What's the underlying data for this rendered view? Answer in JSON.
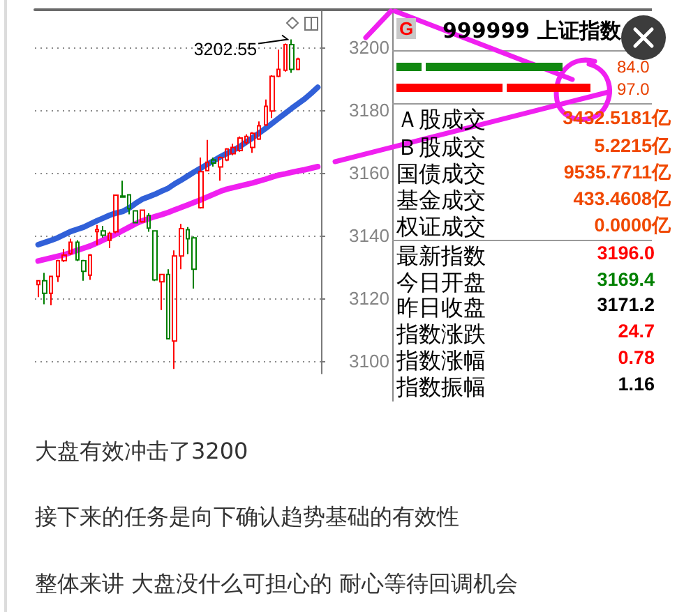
{
  "chart_data": {
    "type": "candlestick",
    "categories": [
      null,
      null,
      null,
      null,
      null,
      null,
      null,
      null,
      null,
      null,
      null,
      null,
      null,
      null,
      null,
      null,
      null,
      null,
      null,
      null,
      null,
      null,
      null,
      null,
      null,
      null,
      null,
      null,
      null,
      null,
      null,
      null,
      null,
      null,
      null,
      null,
      null,
      null,
      null,
      null,
      null,
      null,
      null,
      null
    ],
    "ohlc": [
      [
        3124.4,
        3125.8,
        3120.4,
        3125.6
      ],
      [
        3125.6,
        3128.1,
        3118.1,
        3121.6
      ],
      [
        3121.6,
        3127.0,
        3117.8,
        3127.0
      ],
      [
        3127.0,
        3132.3,
        3125.2,
        3132.0
      ],
      [
        3132.0,
        3135.7,
        3131.6,
        3133.8
      ],
      [
        3134.2,
        3139.0,
        3133.9,
        3137.9
      ],
      [
        3137.9,
        3138.5,
        3131.9,
        3132.3
      ],
      [
        3132.0,
        3132.3,
        3125.6,
        3128.6
      ],
      [
        3127.4,
        3134.1,
        3125.9,
        3133.8
      ],
      [
        3141.3,
        3143.4,
        3137.0,
        3141.9
      ],
      [
        3141.5,
        3143.1,
        3139.4,
        3140.1
      ],
      [
        3138.5,
        3141.2,
        3136.0,
        3140.7
      ],
      [
        3141.2,
        3152.9,
        3140.7,
        3152.9
      ],
      [
        3152.6,
        3157.5,
        3152.1,
        3152.3
      ],
      [
        3153.0,
        3153.0,
        3146.8,
        3148.6
      ],
      [
        3147.9,
        3148.1,
        3143.9,
        3144.1
      ],
      [
        3144.4,
        3148.3,
        3144.1,
        3148.1
      ],
      [
        3146.4,
        3147.1,
        3141.2,
        3142.4
      ],
      [
        3141.5,
        3141.6,
        3125.5,
        3125.9
      ],
      [
        3125.3,
        3127.7,
        3116.3,
        3127.6
      ],
      [
        3127.6,
        3129.3,
        3107.1,
        3107.1
      ],
      [
        3106.4,
        3135.3,
        3097.5,
        3133.5
      ],
      [
        3133.5,
        3143.7,
        3129.3,
        3142.2
      ],
      [
        3141.9,
        3142.7,
        3134.1,
        3139.0
      ],
      [
        3139.3,
        3139.7,
        3123.1,
        3129.3
      ],
      [
        3148.9,
        3164.9,
        3148.6,
        3160.4
      ],
      [
        3160.7,
        3170.5,
        3160.7,
        3163.4
      ],
      [
        3164.1,
        3164.9,
        3162.0,
        3163.1
      ],
      [
        3161.9,
        3165.2,
        3157.5,
        3164.9
      ],
      [
        3164.1,
        3167.9,
        3163.7,
        3167.6
      ],
      [
        3166.1,
        3169.3,
        3165.6,
        3168.1
      ],
      [
        3167.1,
        3171.6,
        3166.7,
        3171.1
      ],
      [
        3169.6,
        3172.3,
        3169.0,
        3171.6
      ],
      [
        3168.1,
        3173.0,
        3166.4,
        3172.6
      ],
      [
        3170.8,
        3176.4,
        3170.5,
        3175.0
      ],
      [
        3175.3,
        3183.4,
        3175.0,
        3181.2
      ],
      [
        3179.7,
        3191.1,
        3177.5,
        3190.8
      ],
      [
        3190.8,
        3199.3,
        3190.5,
        3193.0
      ],
      [
        3192.7,
        3201.2,
        3192.3,
        3200.9
      ],
      [
        3200.9,
        3202.55,
        3191.9,
        3193.0
      ],
      [
        3193.0,
        3196.7,
        3192.7,
        3196.3
      ],
      null,
      null,
      null
    ],
    "colors": [
      "#ff0000",
      "#008000",
      "#ff0000",
      "#ff0000",
      "#ff0000",
      "#ff0000",
      "#008000",
      "#008000",
      "#ff0000",
      "#ff0000",
      "#008000",
      "#ff0000",
      "#ff0000",
      "#008000",
      "#008000",
      "#008000",
      "#ff0000",
      "#008000",
      "#008000",
      "#ff0000",
      "#008000",
      "#ff0000",
      "#ff0000",
      "#008000",
      "#008000",
      "#ff0000",
      "#ff0000",
      "#008000",
      "#ff0000",
      "#ff0000",
      "#ff0000",
      "#ff0000",
      "#ff0000",
      "#ff0000",
      "#ff0000",
      "#ff0000",
      "#ff0000",
      "#ff0000",
      "#ff0000",
      "#008000",
      "#ff0000",
      null,
      null,
      null
    ],
    "series": [
      {
        "type": "line",
        "color": "#3160d8",
        "values": [
          3137.1,
          3137.8,
          3138.5,
          3139.3,
          3140.3,
          3141.3,
          3142.0,
          3142.7,
          3143.7,
          3144.7,
          3145.6,
          3146.5,
          3147.2,
          3147.7,
          3148.8,
          3150.3,
          3151.6,
          3152.4,
          3153.2,
          3154.2,
          3155.1,
          3156.5,
          3157.7,
          3159.0,
          3160.3,
          3161.5,
          3162.7,
          3163.9,
          3165.1,
          3166.2,
          3167.2,
          3168.4,
          3169.8,
          3171.2,
          3172.7,
          3174.2,
          3175.8,
          3177.4,
          3179.0,
          3180.6,
          3182.1,
          3183.6,
          3185.4,
          3187.3
        ]
      },
      {
        "type": "line",
        "color": "#f020f0",
        "values": [
          3131.9,
          3132.4,
          3132.9,
          3133.4,
          3133.9,
          3134.6,
          3135.3,
          3136.0,
          3136.7,
          3137.6,
          3138.6,
          3139.5,
          3140.5,
          3141.6,
          3142.7,
          3143.8,
          3144.7,
          3145.4,
          3146.1,
          3146.7,
          3147.4,
          3148.2,
          3149.0,
          3149.8,
          3150.6,
          3151.4,
          3152.3,
          3153.2,
          3154.1,
          3154.8,
          3155.3,
          3155.8,
          3156.3,
          3156.8,
          3157.4,
          3158.0,
          3158.7,
          3159.3,
          3159.7,
          3160.2,
          3160.6,
          3161.0,
          3161.5,
          3162.0
        ]
      }
    ],
    "ylim": [
      3096,
      3212
    ],
    "yticks": [
      3100,
      3120,
      3140,
      3160,
      3180,
      3200
    ],
    "grid": "y",
    "tick_labels": "y",
    "annotations": [
      "3202.55",
      "G",
      "999999 上证指数",
      "84.0",
      "97.0",
      "Ａ股成交",
      "3432.5181亿",
      "Ｂ股成交",
      "5.2215亿",
      "国债成交",
      "9535.7711亿",
      "基金成交",
      "433.4608亿",
      "权证成交",
      "0.0000亿",
      "最新指数",
      "3196.0",
      "今日开盘",
      "3169.4",
      "昨日收盘",
      "3171.2",
      "指数涨跌",
      "24.7",
      "指数涨幅",
      "0.78",
      "指数振幅",
      "1.16",
      "大盘有效冲击了3200",
      "接下来的任务是向下确认趋势基础的有效性",
      "整体来讲 大盘没什么可担心的 耐心等待回调机会"
    ]
  }
}
